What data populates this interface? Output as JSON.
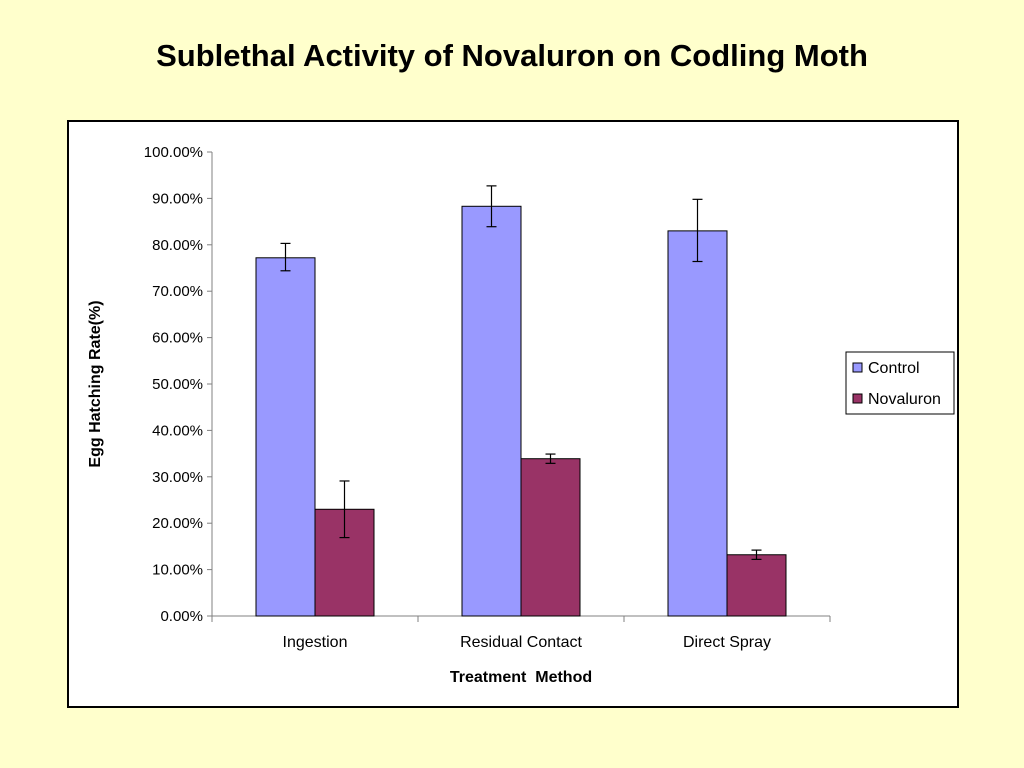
{
  "slide": {
    "title": "Sublethal Activity of Novaluron on Codling Moth"
  },
  "chart_data": {
    "type": "bar",
    "title": "Sublethal Activity of Novaluron on Codling Moth",
    "xlabel": "Treatment  Method",
    "ylabel": "Egg Hatching Rate(%)",
    "categories": [
      "Ingestion",
      "Residual Contact",
      "Direct Spray"
    ],
    "ylim": [
      0,
      100
    ],
    "yticks": [
      0,
      10,
      20,
      30,
      40,
      50,
      60,
      70,
      80,
      90,
      100
    ],
    "ytick_labels": [
      "0.00%",
      "10.00%",
      "20.00%",
      "30.00%",
      "40.00%",
      "50.00%",
      "60.00%",
      "70.00%",
      "80.00%",
      "90.00%",
      "100.00%"
    ],
    "grid": false,
    "legend_position": "right",
    "series": [
      {
        "name": "Control",
        "color": "#9999FF",
        "values": [
          77.2,
          88.3,
          83.0
        ],
        "error_low": [
          74.4,
          83.9,
          76.4
        ],
        "error_high": [
          80.3,
          92.7,
          89.8
        ]
      },
      {
        "name": "Novaluron",
        "color": "#993366",
        "values": [
          23.0,
          33.9,
          13.2
        ],
        "error_low": [
          16.9,
          32.9,
          12.2
        ],
        "error_high": [
          29.1,
          34.9,
          14.2
        ]
      }
    ]
  }
}
